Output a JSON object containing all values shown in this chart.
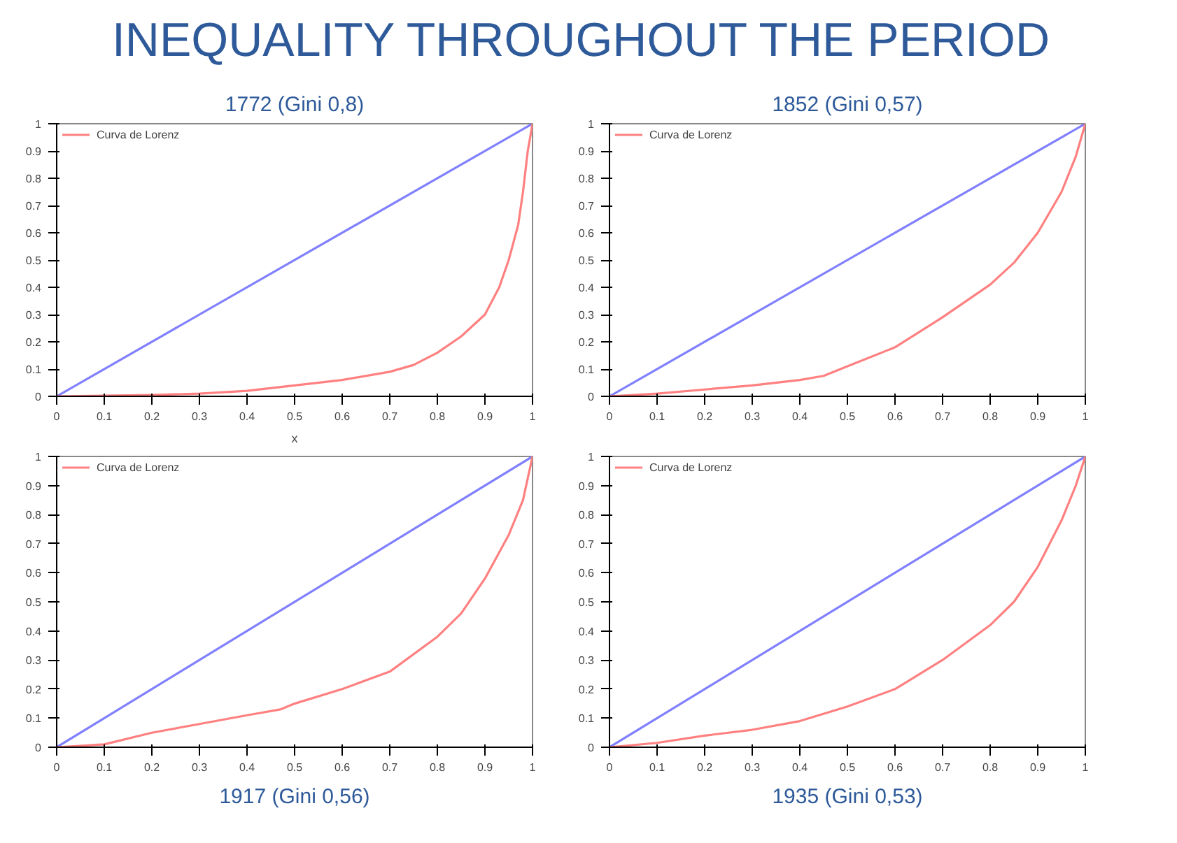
{
  "chart_data": [
    {
      "type": "line",
      "title": "1772 (Gini 0,8)",
      "annotations": [
        "INEQUALITY THROUGHOUT THE PERIOD"
      ],
      "xlabel": "x",
      "xlim": [
        0,
        1
      ],
      "ylim": [
        0,
        1
      ],
      "xticks": [
        0,
        0.1,
        0.2,
        0.3,
        0.4,
        0.5,
        0.6,
        0.7,
        0.8,
        0.9,
        1
      ],
      "yticks": [
        0,
        0.1,
        0.2,
        0.3,
        0.4,
        0.5,
        0.6,
        0.7,
        0.8,
        0.9,
        1
      ],
      "grid": false,
      "legend": "top left",
      "marker": "none",
      "series": [
        {
          "color": "#8080ff",
          "x": [
            0,
            1
          ],
          "values": [
            0,
            1
          ]
        },
        {
          "name": "Curva de Lorenz",
          "color": "#ff8080",
          "x": [
            0,
            0.1,
            0.2,
            0.3,
            0.4,
            0.5,
            0.6,
            0.7,
            0.75,
            0.8,
            0.85,
            0.9,
            0.93,
            0.95,
            0.97,
            0.98,
            0.99,
            1
          ],
          "values": [
            0,
            0.002,
            0.005,
            0.01,
            0.02,
            0.04,
            0.06,
            0.09,
            0.115,
            0.16,
            0.22,
            0.3,
            0.4,
            0.5,
            0.63,
            0.75,
            0.9,
            1
          ]
        }
      ]
    },
    {
      "type": "line",
      "title": "1852 (Gini 0,57)",
      "xlim": [
        0,
        1
      ],
      "ylim": [
        0,
        1
      ],
      "xticks": [
        0,
        0.1,
        0.2,
        0.3,
        0.4,
        0.5,
        0.6,
        0.7,
        0.8,
        0.9,
        1
      ],
      "yticks": [
        0,
        0.1,
        0.2,
        0.3,
        0.4,
        0.5,
        0.6,
        0.7,
        0.8,
        0.9,
        1
      ],
      "grid": false,
      "legend": "top left",
      "marker": "none",
      "series": [
        {
          "color": "#8080ff",
          "x": [
            0,
            1
          ],
          "values": [
            0,
            1
          ]
        },
        {
          "name": "Curva de Lorenz",
          "color": "#ff8080",
          "x": [
            0,
            0.1,
            0.2,
            0.3,
            0.4,
            0.45,
            0.5,
            0.6,
            0.7,
            0.8,
            0.85,
            0.9,
            0.95,
            0.98,
            1
          ],
          "values": [
            0,
            0.01,
            0.025,
            0.04,
            0.06,
            0.075,
            0.11,
            0.18,
            0.29,
            0.41,
            0.49,
            0.6,
            0.75,
            0.88,
            1
          ]
        }
      ]
    },
    {
      "type": "line",
      "title": "1917 (Gini 0,56)",
      "xlim": [
        0,
        1
      ],
      "ylim": [
        0,
        1
      ],
      "xticks": [
        0,
        0.1,
        0.2,
        0.3,
        0.4,
        0.5,
        0.6,
        0.7,
        0.8,
        0.9,
        1
      ],
      "yticks": [
        0,
        0.1,
        0.2,
        0.3,
        0.4,
        0.5,
        0.6,
        0.7,
        0.8,
        0.9,
        1
      ],
      "grid": false,
      "legend": "top left",
      "marker": "none",
      "series": [
        {
          "color": "#8080ff",
          "x": [
            0,
            1
          ],
          "values": [
            0,
            1
          ]
        },
        {
          "name": "Curva de Lorenz",
          "color": "#ff8080",
          "x": [
            0,
            0.1,
            0.2,
            0.3,
            0.4,
            0.47,
            0.5,
            0.6,
            0.7,
            0.8,
            0.85,
            0.9,
            0.95,
            0.98,
            1
          ],
          "values": [
            0,
            0.01,
            0.05,
            0.08,
            0.11,
            0.13,
            0.15,
            0.2,
            0.26,
            0.38,
            0.46,
            0.58,
            0.73,
            0.85,
            1
          ]
        }
      ]
    },
    {
      "type": "line",
      "title": "1935 (Gini 0,53)",
      "xlim": [
        0,
        1
      ],
      "ylim": [
        0,
        1
      ],
      "xticks": [
        0,
        0.1,
        0.2,
        0.3,
        0.4,
        0.5,
        0.6,
        0.7,
        0.8,
        0.9,
        1
      ],
      "yticks": [
        0,
        0.1,
        0.2,
        0.3,
        0.4,
        0.5,
        0.6,
        0.7,
        0.8,
        0.9,
        1
      ],
      "grid": false,
      "legend": "top left",
      "marker": "none",
      "series": [
        {
          "color": "#8080ff",
          "x": [
            0,
            1
          ],
          "values": [
            0,
            1
          ]
        },
        {
          "name": "Curva de Lorenz",
          "color": "#ff8080",
          "x": [
            0,
            0.1,
            0.2,
            0.3,
            0.4,
            0.5,
            0.6,
            0.7,
            0.8,
            0.85,
            0.9,
            0.95,
            0.98,
            1
          ],
          "values": [
            0,
            0.015,
            0.04,
            0.06,
            0.09,
            0.14,
            0.2,
            0.3,
            0.42,
            0.5,
            0.62,
            0.78,
            0.9,
            1
          ]
        }
      ]
    }
  ]
}
